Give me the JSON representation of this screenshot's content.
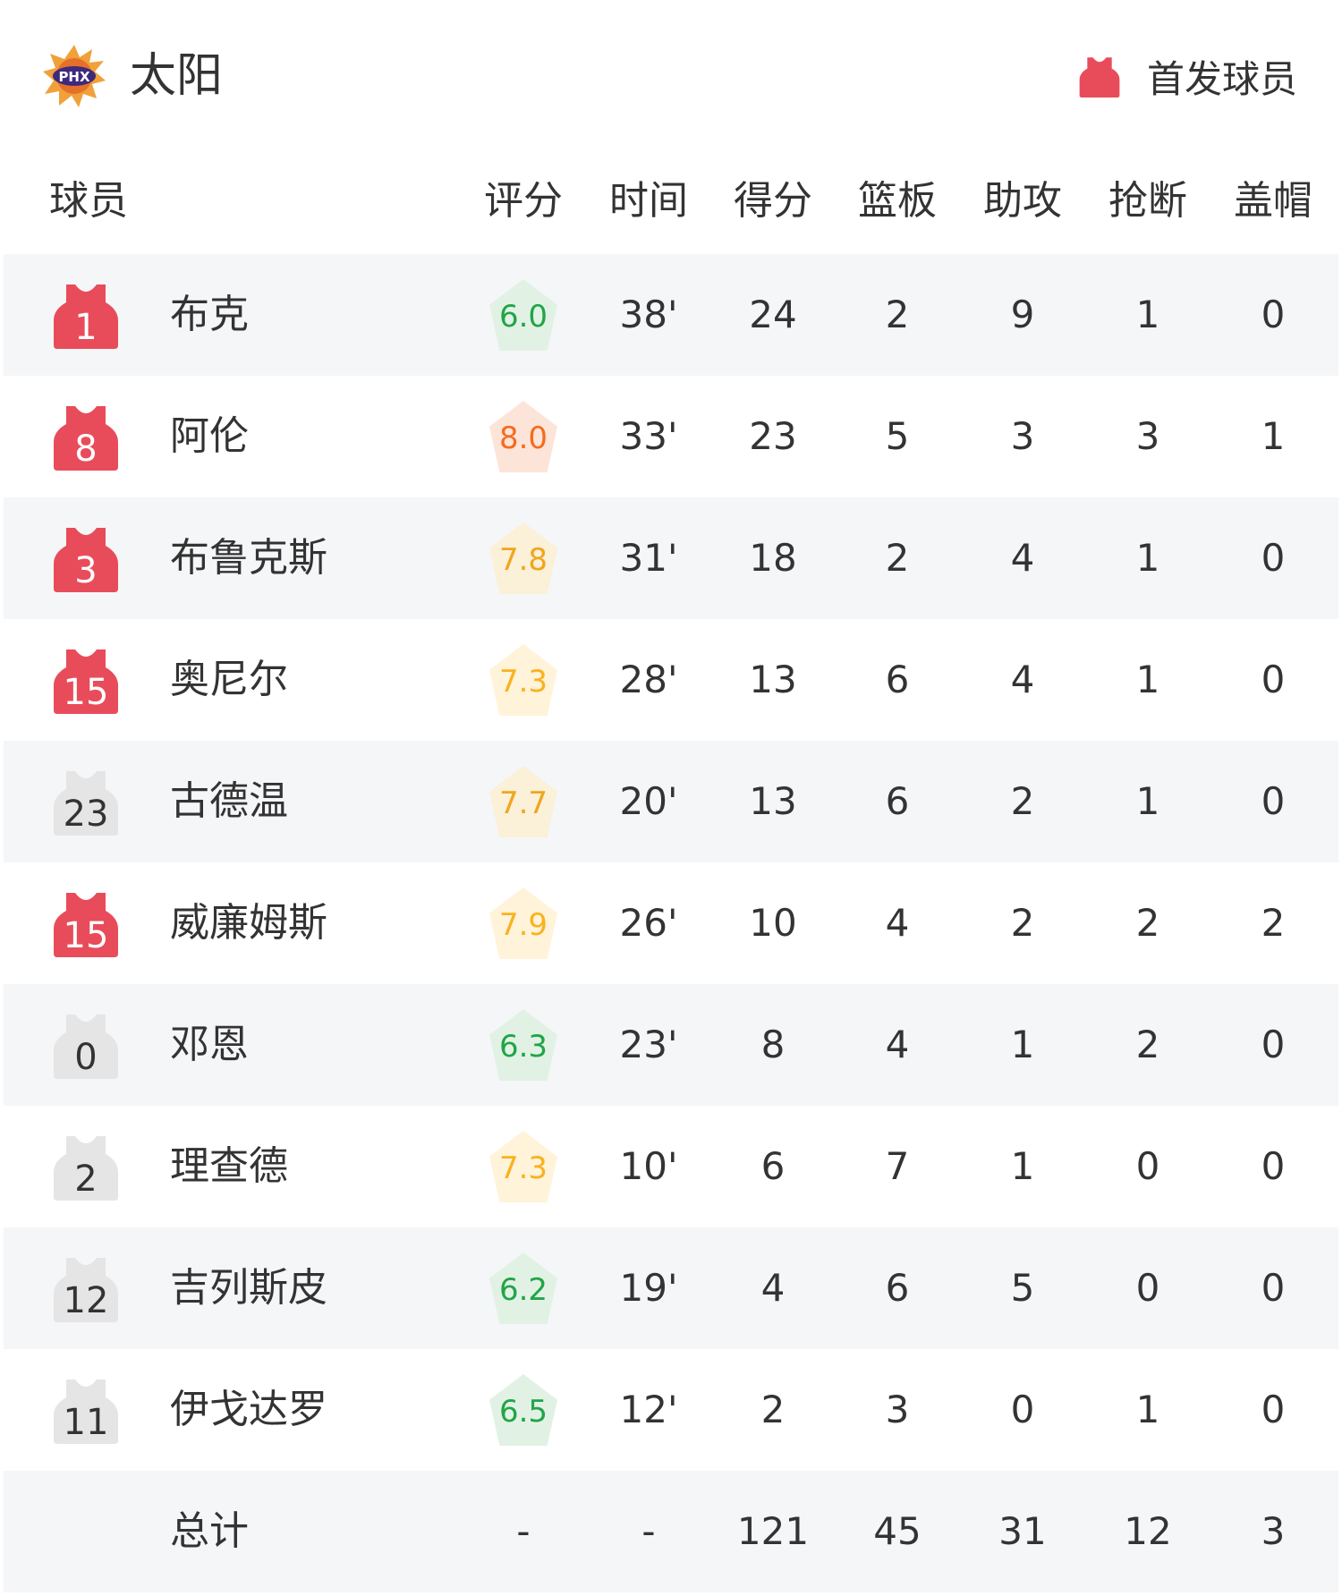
{
  "team": {
    "name": "太阳",
    "logo_text": "PHX"
  },
  "legend": {
    "label": "首发球员",
    "color": "#e84c5a"
  },
  "columns": [
    "球员",
    "评分",
    "时间",
    "得分",
    "篮板",
    "助攻",
    "抢断",
    "盖帽"
  ],
  "players": [
    {
      "number": "1",
      "name": "布克",
      "starter": true,
      "rating": "6.0",
      "time": "38'",
      "pts": "24",
      "reb": "2",
      "ast": "9",
      "stl": "1",
      "blk": "0"
    },
    {
      "number": "8",
      "name": "阿伦",
      "starter": true,
      "rating": "8.0",
      "time": "33'",
      "pts": "23",
      "reb": "5",
      "ast": "3",
      "stl": "3",
      "blk": "1"
    },
    {
      "number": "3",
      "name": "布鲁克斯",
      "starter": true,
      "rating": "7.8",
      "time": "31'",
      "pts": "18",
      "reb": "2",
      "ast": "4",
      "stl": "1",
      "blk": "0"
    },
    {
      "number": "15",
      "name": "奥尼尔",
      "starter": true,
      "rating": "7.3",
      "time": "28'",
      "pts": "13",
      "reb": "6",
      "ast": "4",
      "stl": "1",
      "blk": "0"
    },
    {
      "number": "23",
      "name": "古德温",
      "starter": false,
      "rating": "7.7",
      "time": "20'",
      "pts": "13",
      "reb": "6",
      "ast": "2",
      "stl": "1",
      "blk": "0"
    },
    {
      "number": "15",
      "name": "威廉姆斯",
      "starter": true,
      "rating": "7.9",
      "time": "26'",
      "pts": "10",
      "reb": "4",
      "ast": "2",
      "stl": "2",
      "blk": "2"
    },
    {
      "number": "0",
      "name": "邓恩",
      "starter": false,
      "rating": "6.3",
      "time": "23'",
      "pts": "8",
      "reb": "4",
      "ast": "1",
      "stl": "2",
      "blk": "0"
    },
    {
      "number": "2",
      "name": "理查德",
      "starter": false,
      "rating": "7.3",
      "time": "10'",
      "pts": "6",
      "reb": "7",
      "ast": "1",
      "stl": "0",
      "blk": "0"
    },
    {
      "number": "12",
      "name": "吉列斯皮",
      "starter": false,
      "rating": "6.2",
      "time": "19'",
      "pts": "4",
      "reb": "6",
      "ast": "5",
      "stl": "0",
      "blk": "0"
    },
    {
      "number": "11",
      "name": "伊戈达罗",
      "starter": false,
      "rating": "6.5",
      "time": "12'",
      "pts": "2",
      "reb": "3",
      "ast": "0",
      "stl": "1",
      "blk": "0"
    }
  ],
  "total": {
    "name": "总计",
    "rating": "-",
    "time": "-",
    "pts": "121",
    "reb": "45",
    "ast": "31",
    "stl": "12",
    "blk": "3"
  },
  "rating_colors": {
    "green": {
      "text": "#22a447",
      "bg": "#e1f2e5"
    },
    "orange": {
      "text": "#f46c1e",
      "bg": "#fde4d8"
    },
    "amber": {
      "text": "#efa61d",
      "bg": "#fbf0d8"
    },
    "yellow": {
      "text": "#f9b21e",
      "bg": "#fff3d9"
    }
  },
  "jersey_colors": {
    "starter": "#e84c5a",
    "bench": "#e5e5e5"
  }
}
